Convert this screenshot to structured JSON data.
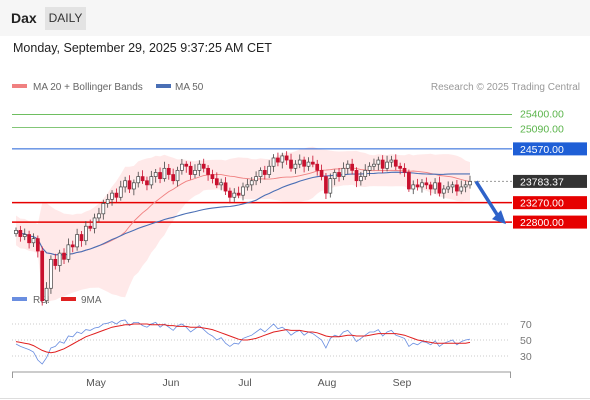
{
  "header": {
    "instrument": "Dax",
    "timeframe_tab": "DAILY"
  },
  "timestamp": "Monday, September 29, 2025 9:37:25 AM CET",
  "legend": {
    "ma20_bb": "MA 20 + Bollinger Bands",
    "ma50": "MA 50",
    "rsi": "RSI",
    "rsi_ma": "9MA",
    "credit": "Research © 2025 Trading Central"
  },
  "colors": {
    "ma20": "#f08080",
    "bollinger_fill": "#ffe3e3",
    "ma50": "#4a6fb5",
    "up": "#444444",
    "down": "#c8102e",
    "resistance_blue": "#1f5fd6",
    "support_red": "#e60000",
    "target_green": "#5ab44a",
    "current_price": "#333333",
    "rsi": "#6a8ee0",
    "rsi_ma": "#e02020"
  },
  "chart_data": [
    {
      "type": "candlestick",
      "title": "",
      "x_axis": {
        "tick_labels": [
          "May",
          "Jun",
          "Jul",
          "Aug",
          "Sep"
        ]
      },
      "y_range": [
        21400,
        25800
      ],
      "levels": [
        {
          "label": "25400.00",
          "value": 25400,
          "role": "target"
        },
        {
          "label": "25090.00",
          "value": 25090,
          "role": "target"
        },
        {
          "label": "24570.00",
          "value": 24570,
          "role": "resistance"
        },
        {
          "label": "23783.37",
          "value": 23783.37,
          "role": "current"
        },
        {
          "label": "23270.00",
          "value": 23270,
          "role": "pivot"
        },
        {
          "label": "22800.00",
          "value": 22800,
          "role": "support"
        }
      ],
      "series": [
        {
          "name": "MA 20 + Bollinger Bands",
          "type": "line_with_band"
        },
        {
          "name": "MA 50",
          "type": "line"
        }
      ],
      "closes": [
        22600,
        22450,
        22500,
        22300,
        22400,
        22100,
        20900,
        21200,
        21900,
        21750,
        22050,
        21900,
        22250,
        22200,
        22500,
        22350,
        22700,
        22650,
        22900,
        23000,
        23250,
        23350,
        23500,
        23400,
        23650,
        23800,
        23600,
        23750,
        23900,
        23800,
        23700,
        23900,
        24000,
        23850,
        24100,
        23950,
        23800,
        24050,
        24200,
        24150,
        23950,
        24050,
        24200,
        24100,
        23950,
        23850,
        23700,
        23750,
        23550,
        23400,
        23500,
        23450,
        23650,
        23700,
        23800,
        23900,
        24050,
        23950,
        24150,
        24350,
        24250,
        24400,
        24300,
        24100,
        24200,
        24300,
        24150,
        24250,
        24200,
        24050,
        23900,
        23500,
        23850,
        24000,
        23900,
        24100,
        24200,
        24050,
        23800,
        23900,
        24050,
        24150,
        24200,
        24300,
        24100,
        24250,
        24300,
        24150,
        24100,
        24000,
        23600,
        23700,
        23650,
        23750,
        23700,
        23600,
        23750,
        23500,
        23600,
        23650,
        23700,
        23550,
        23650,
        23700,
        23783
      ],
      "direction_arrow": {
        "from": 23783,
        "to": 22800
      }
    },
    {
      "type": "line",
      "title": "",
      "y_ticks": [
        70,
        50,
        30
      ],
      "y_range": [
        10,
        85
      ],
      "series": [
        {
          "name": "RSI",
          "values": [
            45,
            42,
            40,
            38,
            35,
            25,
            20,
            28,
            40,
            42,
            48,
            46,
            55,
            54,
            60,
            58,
            63,
            62,
            65,
            66,
            70,
            71,
            73,
            70,
            74,
            75,
            68,
            72,
            72,
            68,
            66,
            70,
            72,
            66,
            70,
            66,
            62,
            68,
            70,
            66,
            60,
            64,
            68,
            63,
            58,
            55,
            50,
            53,
            46,
            42,
            46,
            45,
            52,
            54,
            56,
            60,
            64,
            60,
            65,
            70,
            64,
            66,
            62,
            56,
            60,
            62,
            56,
            60,
            58,
            54,
            50,
            40,
            52,
            56,
            54,
            60,
            62,
            56,
            48,
            52,
            56,
            60,
            60,
            63,
            55,
            60,
            62,
            56,
            54,
            52,
            42,
            46,
            44,
            48,
            47,
            44,
            49,
            42,
            46,
            48,
            50,
            44,
            48,
            50,
            51
          ]
        },
        {
          "name": "9MA",
          "values": [
            48,
            47,
            46,
            45,
            43,
            40,
            37,
            35,
            34,
            35,
            37,
            39,
            42,
            45,
            48,
            51,
            54,
            56,
            58,
            60,
            62,
            64,
            66,
            67,
            68,
            69,
            69,
            70,
            70,
            70,
            70,
            69,
            69,
            69,
            69,
            68,
            68,
            67,
            67,
            67,
            66,
            66,
            66,
            65,
            64,
            63,
            61,
            59,
            57,
            55,
            53,
            51,
            50,
            50,
            51,
            52,
            54,
            56,
            58,
            60,
            61,
            62,
            63,
            62,
            62,
            62,
            61,
            60,
            60,
            59,
            57,
            55,
            54,
            54,
            54,
            55,
            56,
            56,
            55,
            55,
            55,
            56,
            57,
            58,
            58,
            58,
            58,
            58,
            57,
            56,
            54,
            52,
            50,
            49,
            48,
            47,
            46,
            46,
            46,
            46,
            46,
            46,
            46,
            46,
            47
          ]
        }
      ]
    }
  ]
}
